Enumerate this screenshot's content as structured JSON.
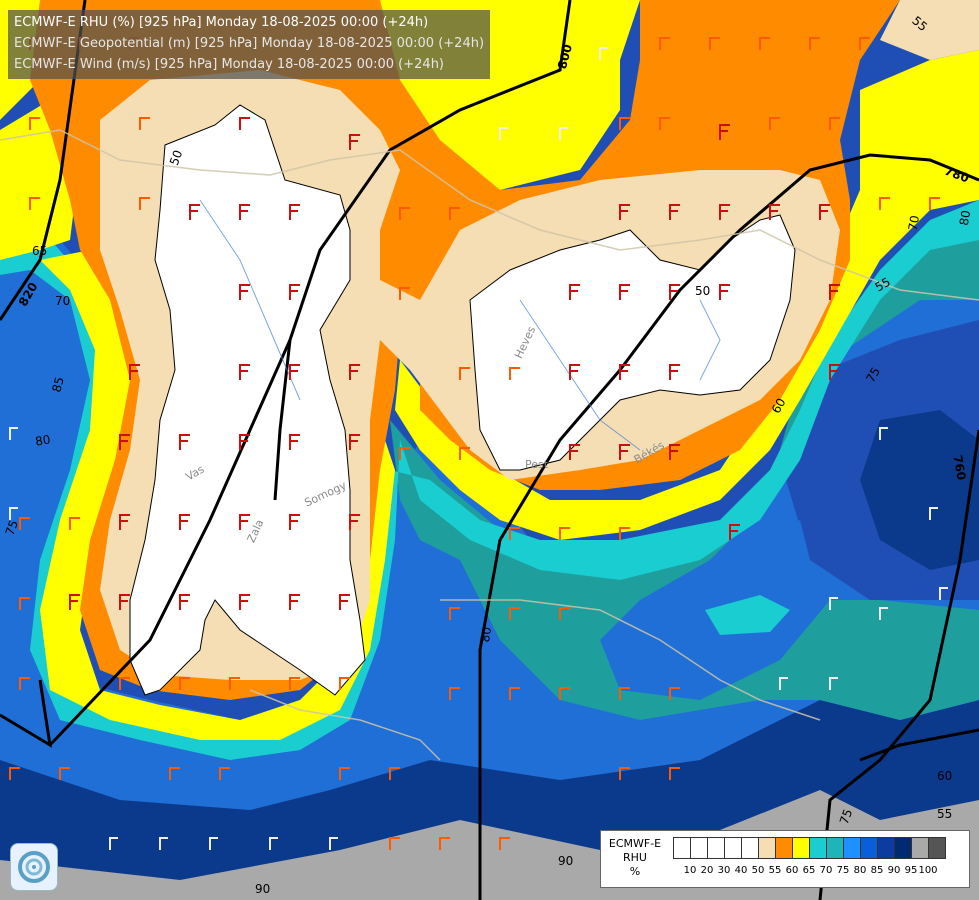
{
  "titles": {
    "line1": "ECMWF-E RHU (%) [925 hPa] Monday 18-08-2025 00:00 (+24h)",
    "line2": "ECMWF-E Geopotential (m) [925 hPa] Monday 18-08-2025 00:00 (+24h)",
    "line3": "ECMWF-E Wind (m/s) [925 hPa] Monday 18-08-2025 00:00 (+24h)"
  },
  "contour_labels": {
    "g800": "800",
    "g780": "780",
    "g760": "760",
    "g820": "820",
    "r50a": "50",
    "r50b": "50",
    "r55a": "55",
    "r55b": "55",
    "r55c": "55",
    "r60a": "60",
    "r60b": "60",
    "r65": "65",
    "r70a": "70",
    "r70b": "70",
    "r75a": "75",
    "r75b": "75",
    "r75c": "75",
    "r80a": "80",
    "r80b": "80",
    "r80c": "80",
    "r85": "85",
    "r90a": "90",
    "r90b": "90"
  },
  "place_labels": {
    "vas": "Vas",
    "zala": "Zala",
    "somogy": "Somogy",
    "heves": "Heves",
    "pest": "Pest",
    "bekes": "Békés"
  },
  "legend": {
    "title_line1": "ECMWF-E",
    "title_line2": "RHU",
    "title_line3": "%",
    "swatches": [
      "#ffffff",
      "#ffffff",
      "#ffffff",
      "#ffffff",
      "#ffffff",
      "#f5deb3",
      "#ff8c00",
      "#ffff00",
      "#19cdd0",
      "#1fb5b8",
      "#1e90ff",
      "#0a5fd8",
      "#0b3da0",
      "#002a72",
      "#a9a9a9",
      "#555555"
    ],
    "ticks": [
      "10",
      "20",
      "30",
      "40",
      "50",
      "55",
      "60",
      "65",
      "70",
      "75",
      "80",
      "85",
      "90",
      "95",
      "100"
    ]
  },
  "colors": {
    "gray_95": "#a9a9a9",
    "navy_90": "#0b3a8c",
    "blue_85": "#1f4fb4",
    "blue_80": "#1f6fd6",
    "teal_75": "#1f9e9e",
    "cyan_70": "#19cdd0",
    "yellow_65": "#ffff00",
    "orange_60": "#ff8c00",
    "tan_55": "#f5deb3",
    "white_50": "#ffffff",
    "barb_red": "#cc1010",
    "barb_orange": "#ff5a00"
  }
}
